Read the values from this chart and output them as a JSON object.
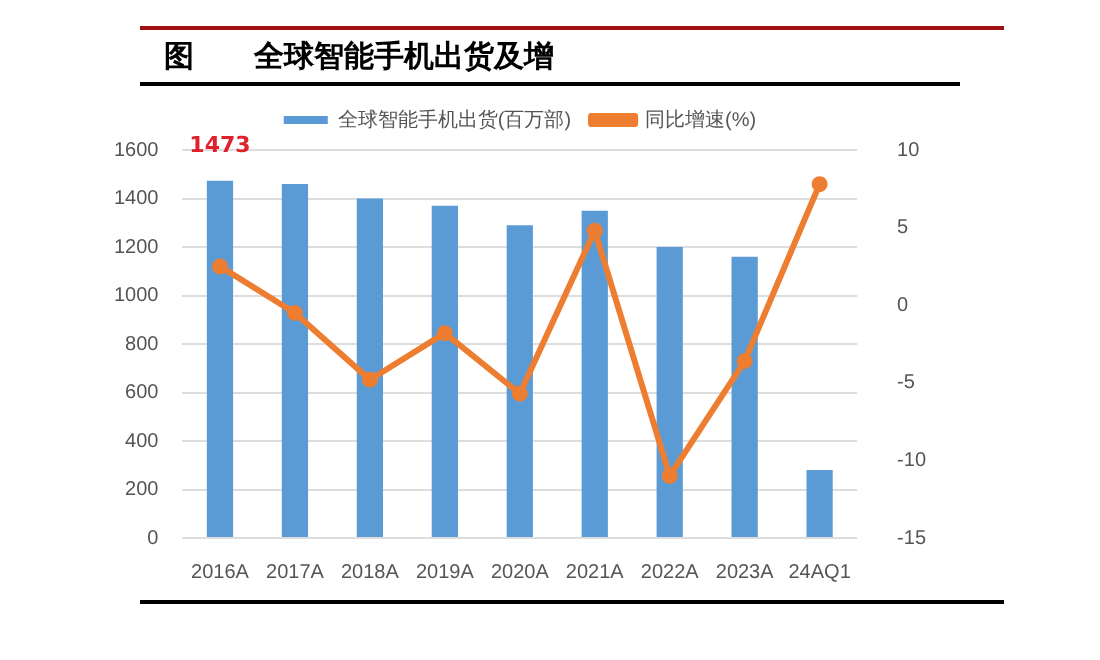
{
  "chart_data": {
    "type": "bar",
    "title": "图　　全球智能手机出货及增",
    "categories": [
      "2016A",
      "2017A",
      "2018A",
      "2019A",
      "2020A",
      "2021A",
      "2022A",
      "2023A",
      "24AQ1"
    ],
    "series": [
      {
        "name": "全球智能手机出货(百万部)",
        "color": "#5b9bd5",
        "values": [
          1473,
          1460,
          1400,
          1370,
          1290,
          1350,
          1200,
          1160,
          280
        ],
        "value_labels": [
          "1473",
          null,
          null,
          null,
          null,
          null,
          null,
          null,
          null
        ]
      },
      {
        "name": "同比增速(%)",
        "type": "line",
        "axis": "y2",
        "color": "#ed7d31",
        "marker": "circle",
        "values": [
          2.5,
          -0.5,
          -4.8,
          -1.8,
          -5.7,
          4.8,
          -11.0,
          -3.6,
          7.8
        ]
      }
    ],
    "ylim": [
      0,
      1600
    ],
    "yticks": [
      0,
      200,
      400,
      600,
      800,
      1000,
      1200,
      1400,
      1600
    ],
    "y2lim": [
      -15,
      10
    ],
    "y2ticks": [
      -15,
      -10,
      -5,
      0,
      5,
      10
    ],
    "grid": "y",
    "legend": "top"
  }
}
